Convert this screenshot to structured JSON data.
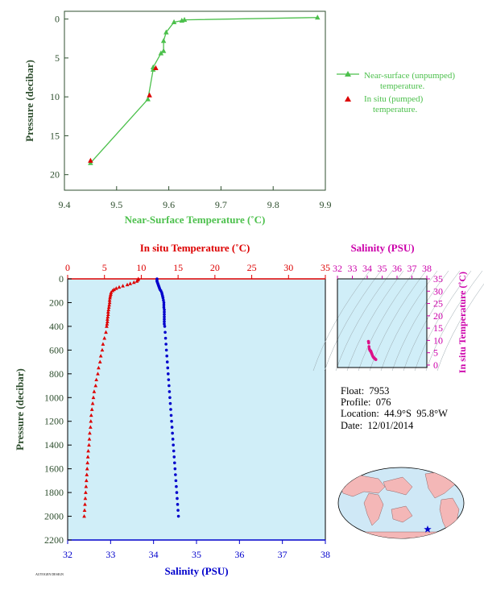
{
  "colors": {
    "dark_green": "#2f4f2f",
    "light_green": "#4cc04c",
    "red": "#dd0000",
    "blue": "#0000cc",
    "magenta": "#cc00aa",
    "panel_bg": "#d0eef8",
    "land": "#f4b7b7",
    "ocean": "#cfe8f6"
  },
  "footer_tag": "AUTOGEN DESIGN",
  "info": {
    "float_label": "Float:",
    "float_value": "7953",
    "profile_label": "Profile:",
    "profile_value": "076",
    "location_label": "Location:",
    "location_value": "44.9°S  95.8°W",
    "date_label": "Date:",
    "date_value": "12/01/2014"
  },
  "map": {
    "marker_icon": "star-icon"
  },
  "chart_data": [
    {
      "id": "near_surface",
      "type": "line",
      "xlabel": "Near-Surface Temperature (˚C)",
      "ylabel": "Pressure (decibar)",
      "xlim": [
        9.4,
        9.9
      ],
      "ylim": [
        22,
        -1
      ],
      "xticks": [
        "9.4",
        "9.5",
        "9.6",
        "9.7",
        "9.8",
        "9.9"
      ],
      "yticks": [
        "0",
        "5",
        "10",
        "15",
        "20"
      ],
      "legend_position": "right",
      "series": [
        {
          "name": "Near-surface (unpumped) temperature.",
          "marker": "triangle",
          "x": [
            9.885,
            9.63,
            9.625,
            9.61,
            9.595,
            9.59,
            9.59,
            9.585,
            9.57,
            9.57,
            9.56,
            9.45
          ],
          "y": [
            -0.2,
            0.1,
            0.2,
            0.4,
            1.7,
            2.8,
            4.1,
            4.4,
            6.2,
            6.5,
            10.3,
            18.5
          ]
        },
        {
          "name": "In situ (pumped) temperature.",
          "marker": "triangle",
          "x": [
            9.575,
            9.563,
            9.45
          ],
          "y": [
            6.3,
            9.8,
            18.2
          ]
        }
      ]
    },
    {
      "id": "profile",
      "type": "scatter",
      "title_top": "In situ Temperature (˚C)",
      "xlabel": "Salinity (PSU)",
      "ylabel": "Pressure (decibar)",
      "temp_lim": [
        0,
        35
      ],
      "temp_ticks": [
        "0",
        "5",
        "10",
        "15",
        "20",
        "25",
        "30",
        "35"
      ],
      "sal_lim": [
        32,
        38
      ],
      "sal_ticks": [
        "32",
        "33",
        "34",
        "35",
        "36",
        "37",
        "38"
      ],
      "ylim": [
        2200,
        0
      ],
      "yticks": [
        "0",
        "200",
        "400",
        "600",
        "800",
        "1000",
        "1200",
        "1400",
        "1600",
        "1800",
        "2000",
        "2200"
      ],
      "grid": false,
      "series": [
        {
          "name": "In situ Temperature",
          "marker": "triangle",
          "pressure": [
            0,
            10,
            20,
            30,
            40,
            50,
            60,
            70,
            80,
            90,
            100,
            115,
            130,
            145,
            160,
            180,
            200,
            220,
            240,
            260,
            280,
            300,
            320,
            340,
            360,
            380,
            400,
            450,
            500,
            550,
            600,
            650,
            700,
            750,
            800,
            850,
            900,
            950,
            1000,
            1050,
            1100,
            1150,
            1200,
            1250,
            1300,
            1350,
            1400,
            1450,
            1500,
            1550,
            1600,
            1650,
            1700,
            1750,
            1800,
            1850,
            1900,
            1950,
            2000
          ],
          "values": [
            9.6,
            9.55,
            9.4,
            9.0,
            8.5,
            8.1,
            7.5,
            7.0,
            6.6,
            6.3,
            6.1,
            5.9,
            5.85,
            5.8,
            5.75,
            5.7,
            5.7,
            5.65,
            5.6,
            5.55,
            5.5,
            5.5,
            5.45,
            5.4,
            5.4,
            5.35,
            5.3,
            5.2,
            5.0,
            4.8,
            4.7,
            4.5,
            4.4,
            4.2,
            4.1,
            3.9,
            3.8,
            3.6,
            3.5,
            3.4,
            3.3,
            3.2,
            3.15,
            3.1,
            3.0,
            2.95,
            2.9,
            2.8,
            2.75,
            2.7,
            2.65,
            2.6,
            2.55,
            2.5,
            2.45,
            2.4,
            2.35,
            2.3,
            2.25
          ]
        },
        {
          "name": "Salinity",
          "marker": "dot",
          "pressure": [
            0,
            10,
            20,
            30,
            40,
            50,
            60,
            70,
            80,
            90,
            100,
            115,
            130,
            145,
            160,
            180,
            200,
            220,
            240,
            260,
            280,
            300,
            320,
            340,
            360,
            380,
            400,
            450,
            500,
            550,
            600,
            650,
            700,
            750,
            800,
            850,
            900,
            950,
            1000,
            1050,
            1100,
            1150,
            1200,
            1250,
            1300,
            1350,
            1400,
            1450,
            1500,
            1550,
            1600,
            1650,
            1700,
            1750,
            1800,
            1850,
            1900,
            1950,
            2000
          ],
          "values": [
            34.08,
            34.08,
            34.08,
            34.09,
            34.1,
            34.11,
            34.12,
            34.13,
            34.14,
            34.15,
            34.17,
            34.19,
            34.2,
            34.21,
            34.22,
            34.23,
            34.24,
            34.24,
            34.24,
            34.25,
            34.25,
            34.25,
            34.25,
            34.25,
            34.25,
            34.25,
            34.26,
            34.27,
            34.28,
            34.29,
            34.3,
            34.31,
            34.32,
            34.33,
            34.34,
            34.35,
            34.36,
            34.37,
            34.38,
            34.39,
            34.4,
            34.41,
            34.42,
            34.43,
            34.44,
            34.45,
            34.46,
            34.47,
            34.48,
            34.49,
            34.5,
            34.51,
            34.52,
            34.53,
            34.54,
            34.55,
            34.56,
            34.57,
            34.58
          ]
        }
      ]
    },
    {
      "id": "ts_diagram",
      "type": "scatter",
      "title_top": "Salinity (PSU)",
      "ylabel": "In situ Temperature (˚C)",
      "xlim": [
        32,
        38
      ],
      "xticks": [
        "32",
        "33",
        "34",
        "35",
        "36",
        "37",
        "38"
      ],
      "ylim": [
        -1,
        35
      ],
      "yticks": [
        "0",
        "5",
        "10",
        "15",
        "20",
        "25",
        "30",
        "35"
      ],
      "series": [
        {
          "name": "T-S",
          "marker": "dot",
          "x": [
            34.08,
            34.1,
            34.12,
            34.14,
            34.17,
            34.2,
            34.22,
            34.24,
            34.25,
            34.26,
            34.28,
            34.3,
            34.32,
            34.35,
            34.38,
            34.42,
            34.46,
            34.5,
            34.54,
            34.58
          ],
          "y": [
            9.6,
            9.0,
            7.5,
            6.6,
            6.1,
            5.85,
            5.75,
            5.7,
            5.5,
            5.3,
            5.0,
            4.7,
            4.4,
            3.9,
            3.5,
            3.15,
            2.9,
            2.65,
            2.45,
            2.25
          ]
        }
      ]
    }
  ]
}
